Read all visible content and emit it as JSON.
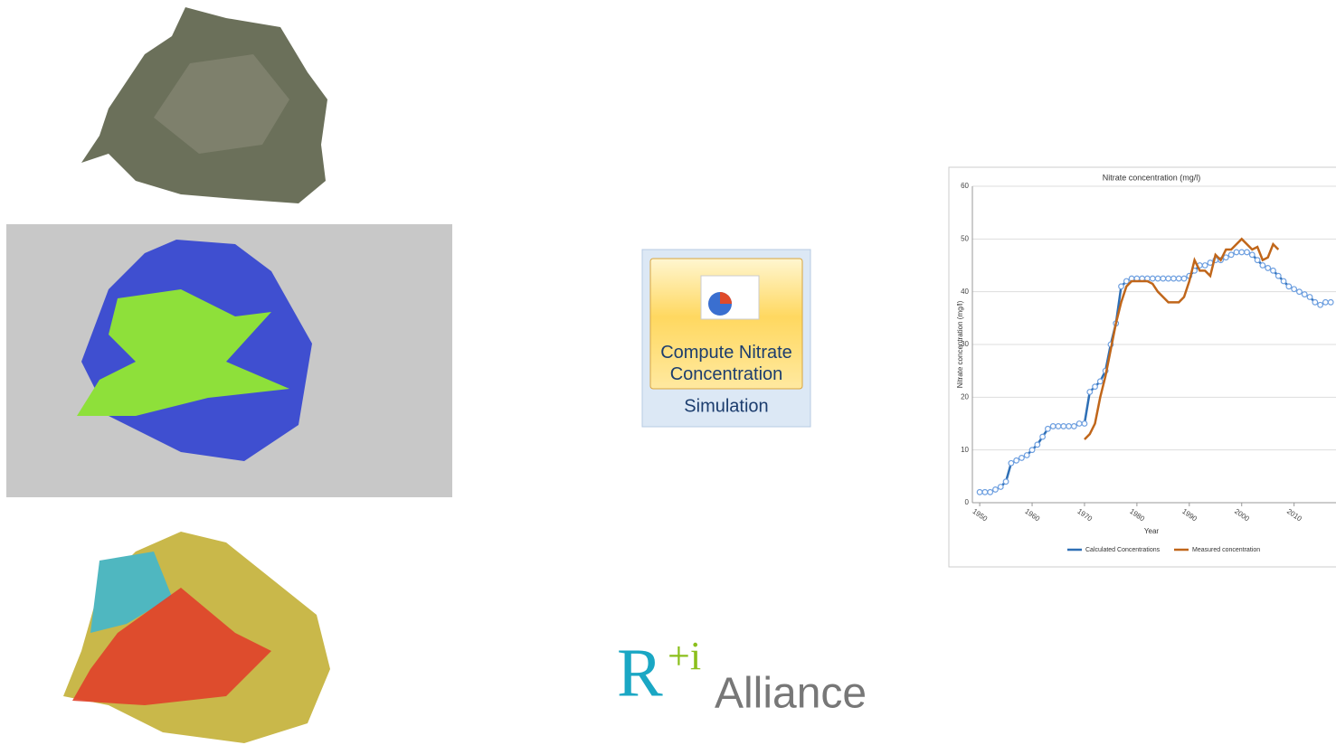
{
  "button": {
    "label": "Compute Nitrate Concentration",
    "group": "Simulation"
  },
  "logo": {
    "mark": "R",
    "plus": "+i",
    "name": "Alliance"
  },
  "chart_data": {
    "type": "line",
    "title": "Nitrate concentration (mg/l)",
    "x_label": "Year",
    "y_label": "Nitrate concentration (mg/l)",
    "xlim": [
      1948.6,
      2018
    ],
    "xticks": [
      1950,
      1960,
      1970,
      1980,
      1990,
      2000,
      2010
    ],
    "ylim": [
      0,
      60
    ],
    "yticks": [
      0,
      10,
      20,
      30,
      40,
      50,
      60
    ],
    "grid": true,
    "series": [
      {
        "name": "Calculated Concentrations",
        "color": "#2e6fb5",
        "markers": true,
        "x": [
          1950,
          1951,
          1952,
          1953,
          1954,
          1955,
          1956,
          1957,
          1958,
          1959,
          1960,
          1961,
          1962,
          1963,
          1964,
          1965,
          1966,
          1967,
          1968,
          1969,
          1970,
          1971,
          1972,
          1973,
          1974,
          1975,
          1976,
          1977,
          1978,
          1979,
          1980,
          1981,
          1982,
          1983,
          1984,
          1985,
          1986,
          1987,
          1988,
          1989,
          1990,
          1991,
          1992,
          1993,
          1994,
          1995,
          1996,
          1997,
          1998,
          1999,
          2000,
          2001,
          2002,
          2003,
          2004,
          2005,
          2006,
          2007,
          2008,
          2009,
          2010,
          2011,
          2012,
          2013,
          2014,
          2015,
          2016,
          2017
        ],
        "values": [
          2,
          2,
          2,
          2.5,
          3,
          4,
          7.5,
          8,
          8.5,
          9,
          10,
          11,
          12.5,
          14,
          14.5,
          14.5,
          14.5,
          14.5,
          14.5,
          15,
          15,
          21,
          22,
          23,
          25,
          30,
          34,
          41,
          42,
          42.5,
          42.5,
          42.5,
          42.5,
          42.5,
          42.5,
          42.5,
          42.5,
          42.5,
          42.5,
          42.5,
          43,
          44,
          45,
          45,
          45.5,
          46,
          46,
          46.5,
          47,
          47.5,
          47.5,
          47.5,
          47,
          46,
          45,
          44.5,
          44,
          43,
          42,
          41,
          40.5,
          40,
          39.5,
          39,
          38,
          37.5,
          38,
          38
        ]
      },
      {
        "name": "Measured concentration",
        "color": "#c0661a",
        "markers": false,
        "x": [
          1970,
          1971,
          1972,
          1973,
          1974,
          1975,
          1976,
          1977,
          1978,
          1979,
          1980,
          1981,
          1982,
          1983,
          1984,
          1985,
          1986,
          1987,
          1988,
          1989,
          1990,
          1991,
          1992,
          1993,
          1994,
          1995,
          1996,
          1997,
          1998,
          1999,
          2000,
          2001,
          2002,
          2003,
          2004,
          2005,
          2006,
          2007
        ],
        "values": [
          12,
          13,
          15,
          20,
          24,
          29,
          34,
          38,
          41,
          42,
          42,
          42,
          42,
          41.5,
          40,
          39,
          38,
          38,
          38,
          39,
          42,
          46,
          44,
          44,
          43,
          47,
          46,
          48,
          48,
          49,
          50,
          49,
          48,
          48.5,
          46,
          46.5,
          49,
          48
        ]
      }
    ]
  }
}
